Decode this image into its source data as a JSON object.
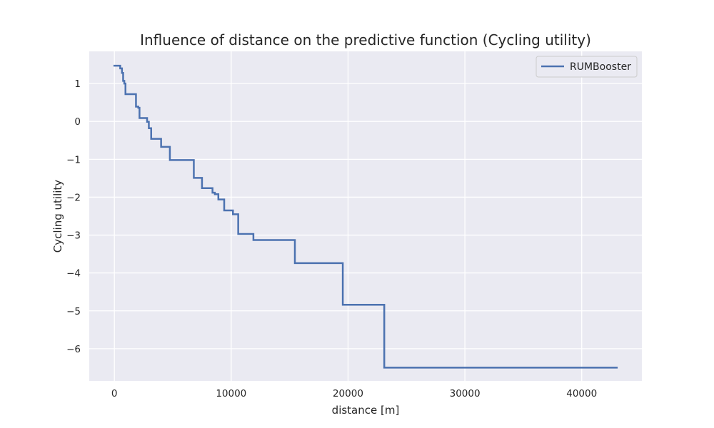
{
  "chart_data": {
    "type": "line",
    "title": "Influence of distance on the predictive function (Cycling utility)",
    "xlabel": "distance [m]",
    "ylabel": "Cycling utility",
    "xlim": [
      -2150,
      45150
    ],
    "ylim": [
      -6.85,
      1.85
    ],
    "xticks": [
      0,
      10000,
      20000,
      30000,
      40000
    ],
    "xtick_labels": [
      "0",
      "10000",
      "20000",
      "30000",
      "40000"
    ],
    "yticks": [
      1,
      0,
      -1,
      -2,
      -3,
      -4,
      -5,
      -6
    ],
    "ytick_labels": [
      "1",
      "0",
      "−1",
      "−2",
      "−3",
      "−4",
      "−5",
      "−6"
    ],
    "grid": true,
    "legend_position": "upper right",
    "series": [
      {
        "name": "RUMBooster",
        "color": "#4c72b0",
        "step": "post",
        "x": [
          0,
          500,
          650,
          750,
          850,
          950,
          1850,
          2050,
          2150,
          2800,
          2950,
          3150,
          4000,
          4750,
          6800,
          7500,
          8400,
          8600,
          8900,
          9400,
          10150,
          10600,
          11900,
          15450,
          19550,
          23100,
          43000
        ],
        "y": [
          1.47,
          1.4,
          1.28,
          1.07,
          1.0,
          0.72,
          0.39,
          0.36,
          0.09,
          -0.01,
          -0.18,
          -0.46,
          -0.67,
          -1.02,
          -1.49,
          -1.76,
          -1.88,
          -1.92,
          -2.06,
          -2.35,
          -2.45,
          -2.97,
          -3.13,
          -3.74,
          -4.84,
          -6.5,
          -6.5
        ]
      }
    ]
  }
}
